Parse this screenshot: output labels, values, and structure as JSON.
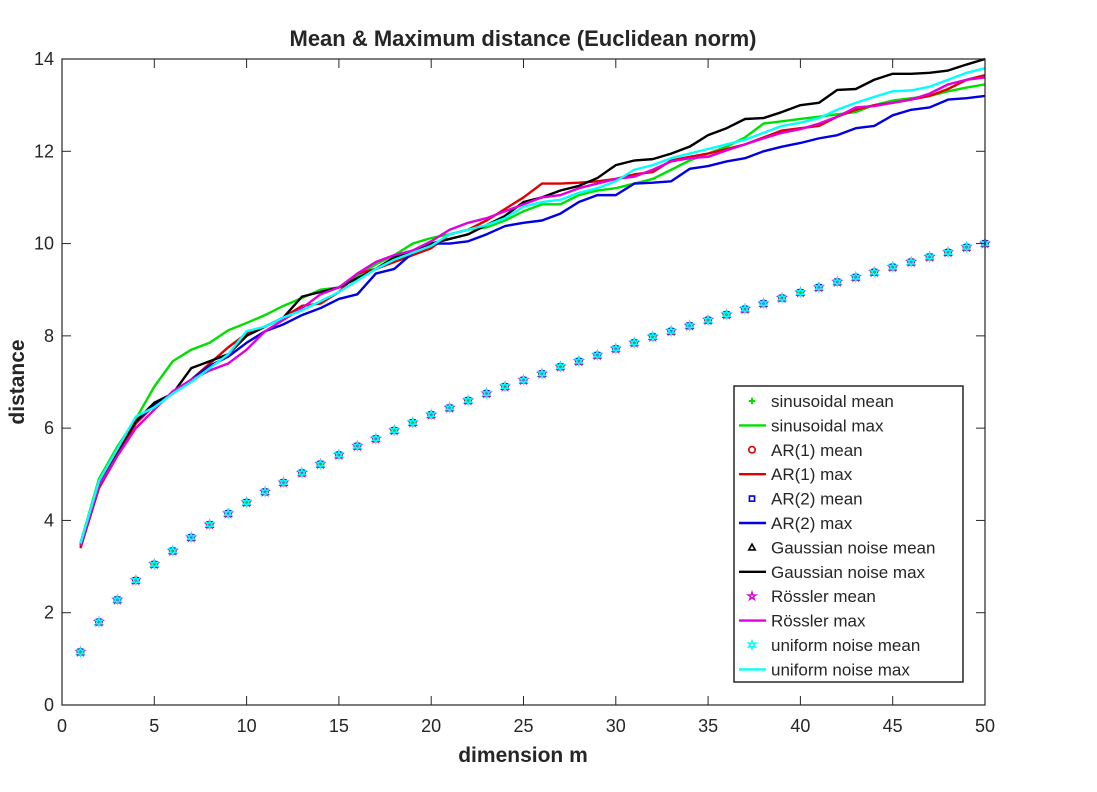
{
  "chart_data": {
    "type": "line",
    "title": "Mean & Maximum distance (Euclidean norm)",
    "xlabel": "dimension m",
    "ylabel": "distance",
    "xlim": [
      0,
      50
    ],
    "ylim": [
      0,
      14
    ],
    "xticks": [
      0,
      5,
      10,
      15,
      20,
      25,
      30,
      35,
      40,
      45,
      50
    ],
    "yticks": [
      0,
      2,
      4,
      6,
      8,
      10,
      12,
      14
    ],
    "grid": false,
    "legend_position": "bottom-right",
    "x": [
      1,
      2,
      3,
      4,
      5,
      6,
      7,
      8,
      9,
      10,
      11,
      12,
      13,
      14,
      15,
      16,
      17,
      18,
      19,
      20,
      21,
      22,
      23,
      24,
      25,
      26,
      27,
      28,
      29,
      30,
      31,
      32,
      33,
      34,
      35,
      36,
      37,
      38,
      39,
      40,
      41,
      42,
      43,
      44,
      45,
      46,
      47,
      48,
      49,
      50
    ],
    "series": [
      {
        "name": "sinusoidal mean",
        "kind": "mean",
        "color": "#00e000",
        "marker": "plus",
        "values": [
          1.15,
          1.8,
          2.28,
          2.7,
          3.05,
          3.34,
          3.63,
          3.91,
          4.15,
          4.39,
          4.62,
          4.82,
          5.03,
          5.22,
          5.42,
          5.61,
          5.77,
          5.95,
          6.12,
          6.29,
          6.44,
          6.6,
          6.75,
          6.9,
          7.04,
          7.18,
          7.33,
          7.45,
          7.58,
          7.72,
          7.85,
          7.98,
          8.1,
          8.22,
          8.34,
          8.46,
          8.58,
          8.7,
          8.82,
          8.94,
          9.05,
          9.17,
          9.27,
          9.38,
          9.49,
          9.6,
          9.71,
          9.81,
          9.92,
          10.0
        ]
      },
      {
        "name": "sinusoidal max",
        "kind": "max",
        "color": "#00e000",
        "values": [
          3.5,
          4.9,
          5.6,
          6.2,
          6.9,
          7.45,
          7.7,
          7.85,
          8.12,
          8.28,
          8.45,
          8.65,
          8.82,
          9.0,
          9.05,
          9.3,
          9.55,
          9.75,
          10.0,
          10.12,
          10.2,
          10.3,
          10.35,
          10.5,
          10.7,
          10.85,
          10.85,
          11.05,
          11.15,
          11.2,
          11.3,
          11.4,
          11.6,
          11.8,
          11.95,
          12.1,
          12.3,
          12.6,
          12.65,
          12.7,
          12.75,
          12.8,
          12.85,
          13.0,
          13.1,
          13.15,
          13.2,
          13.3,
          13.38,
          13.45
        ]
      },
      {
        "name": "AR(1) mean",
        "kind": "mean",
        "color": "#e00000",
        "marker": "circle",
        "values": [
          1.15,
          1.8,
          2.28,
          2.7,
          3.05,
          3.34,
          3.63,
          3.91,
          4.15,
          4.39,
          4.62,
          4.82,
          5.03,
          5.22,
          5.42,
          5.61,
          5.77,
          5.95,
          6.12,
          6.29,
          6.44,
          6.6,
          6.75,
          6.9,
          7.04,
          7.18,
          7.33,
          7.45,
          7.58,
          7.72,
          7.85,
          7.98,
          8.1,
          8.22,
          8.34,
          8.46,
          8.58,
          8.7,
          8.82,
          8.94,
          9.05,
          9.17,
          9.27,
          9.38,
          9.49,
          9.6,
          9.71,
          9.81,
          9.92,
          10.0
        ]
      },
      {
        "name": "AR(1) max",
        "kind": "max",
        "color": "#e00000",
        "values": [
          3.4,
          4.7,
          5.4,
          6.1,
          6.5,
          6.75,
          7.05,
          7.4,
          7.75,
          8.05,
          8.2,
          8.4,
          8.65,
          8.7,
          8.95,
          9.35,
          9.45,
          9.6,
          9.75,
          9.9,
          10.2,
          10.3,
          10.5,
          10.75,
          11.0,
          11.3,
          11.3,
          11.32,
          11.35,
          11.4,
          11.5,
          11.55,
          11.8,
          11.88,
          11.95,
          12.05,
          12.15,
          12.3,
          12.45,
          12.5,
          12.55,
          12.75,
          12.9,
          13.0,
          13.05,
          13.12,
          13.2,
          13.35,
          13.55,
          13.65
        ]
      },
      {
        "name": "AR(2) mean",
        "kind": "mean",
        "color": "#0000e0",
        "marker": "square",
        "values": [
          1.15,
          1.8,
          2.28,
          2.7,
          3.05,
          3.34,
          3.63,
          3.91,
          4.15,
          4.39,
          4.62,
          4.82,
          5.03,
          5.22,
          5.42,
          5.61,
          5.77,
          5.95,
          6.12,
          6.29,
          6.44,
          6.6,
          6.75,
          6.9,
          7.04,
          7.18,
          7.33,
          7.45,
          7.58,
          7.72,
          7.85,
          7.98,
          8.1,
          8.22,
          8.34,
          8.46,
          8.58,
          8.7,
          8.82,
          8.94,
          9.05,
          9.17,
          9.27,
          9.38,
          9.49,
          9.6,
          9.71,
          9.81,
          9.92,
          10.0
        ]
      },
      {
        "name": "AR(2) max",
        "kind": "max",
        "color": "#0000e0",
        "values": [
          3.45,
          4.75,
          5.5,
          6.15,
          6.5,
          6.75,
          7.05,
          7.35,
          7.55,
          7.85,
          8.1,
          8.25,
          8.45,
          8.6,
          8.8,
          8.9,
          9.35,
          9.45,
          9.8,
          10.0,
          10.0,
          10.05,
          10.2,
          10.38,
          10.45,
          10.5,
          10.65,
          10.9,
          11.05,
          11.05,
          11.3,
          11.32,
          11.35,
          11.62,
          11.68,
          11.78,
          11.85,
          12.0,
          12.1,
          12.18,
          12.28,
          12.35,
          12.5,
          12.55,
          12.78,
          12.9,
          12.95,
          13.12,
          13.15,
          13.2
        ]
      },
      {
        "name": "Gaussian noise mean",
        "kind": "mean",
        "color": "#000000",
        "marker": "triangle",
        "values": [
          1.15,
          1.8,
          2.28,
          2.7,
          3.05,
          3.34,
          3.63,
          3.91,
          4.15,
          4.39,
          4.62,
          4.82,
          5.03,
          5.22,
          5.42,
          5.61,
          5.77,
          5.95,
          6.12,
          6.29,
          6.44,
          6.6,
          6.75,
          6.9,
          7.04,
          7.18,
          7.33,
          7.45,
          7.58,
          7.72,
          7.85,
          7.98,
          8.1,
          8.22,
          8.34,
          8.46,
          8.58,
          8.7,
          8.82,
          8.94,
          9.05,
          9.17,
          9.27,
          9.38,
          9.49,
          9.6,
          9.71,
          9.81,
          9.92,
          10.0
        ]
      },
      {
        "name": "Gaussian noise max",
        "kind": "max",
        "color": "#000000",
        "values": [
          3.5,
          4.8,
          5.5,
          6.15,
          6.55,
          6.75,
          7.3,
          7.45,
          7.6,
          8.0,
          8.2,
          8.4,
          8.85,
          8.95,
          9.05,
          9.25,
          9.45,
          9.7,
          9.85,
          10.0,
          10.1,
          10.2,
          10.4,
          10.6,
          10.9,
          11.0,
          11.15,
          11.25,
          11.42,
          11.7,
          11.8,
          11.83,
          11.95,
          12.1,
          12.35,
          12.5,
          12.7,
          12.72,
          12.85,
          13.0,
          13.05,
          13.33,
          13.35,
          13.55,
          13.68,
          13.68,
          13.7,
          13.75,
          13.88,
          14.0
        ]
      },
      {
        "name": "Rössler mean",
        "kind": "mean",
        "color": "#e000e0",
        "marker": "pentagram",
        "values": [
          1.15,
          1.8,
          2.28,
          2.7,
          3.05,
          3.34,
          3.63,
          3.91,
          4.15,
          4.39,
          4.62,
          4.82,
          5.03,
          5.22,
          5.42,
          5.61,
          5.77,
          5.95,
          6.12,
          6.29,
          6.44,
          6.6,
          6.75,
          6.9,
          7.04,
          7.18,
          7.33,
          7.45,
          7.58,
          7.72,
          7.85,
          7.98,
          8.1,
          8.22,
          8.34,
          8.46,
          8.58,
          8.7,
          8.82,
          8.94,
          9.05,
          9.17,
          9.27,
          9.38,
          9.49,
          9.6,
          9.71,
          9.81,
          9.92,
          10.0
        ]
      },
      {
        "name": "Rössler max",
        "kind": "max",
        "color": "#e000e0",
        "values": [
          3.45,
          4.75,
          5.4,
          6.0,
          6.4,
          6.8,
          7.05,
          7.25,
          7.4,
          7.7,
          8.1,
          8.35,
          8.6,
          8.9,
          9.05,
          9.35,
          9.6,
          9.75,
          9.85,
          10.05,
          10.3,
          10.45,
          10.55,
          10.7,
          10.85,
          11.0,
          11.05,
          11.2,
          11.3,
          11.4,
          11.45,
          11.6,
          11.78,
          11.85,
          11.88,
          12.02,
          12.15,
          12.28,
          12.4,
          12.48,
          12.6,
          12.75,
          12.95,
          12.98,
          13.05,
          13.12,
          13.25,
          13.45,
          13.55,
          13.6
        ]
      },
      {
        "name": "uniform noise mean",
        "kind": "mean",
        "color": "#00ffff",
        "marker": "hexagram",
        "values": [
          1.15,
          1.8,
          2.28,
          2.7,
          3.05,
          3.34,
          3.63,
          3.91,
          4.15,
          4.39,
          4.62,
          4.82,
          5.03,
          5.22,
          5.42,
          5.61,
          5.77,
          5.95,
          6.12,
          6.29,
          6.44,
          6.6,
          6.75,
          6.9,
          7.04,
          7.18,
          7.33,
          7.45,
          7.58,
          7.72,
          7.85,
          7.98,
          8.1,
          8.22,
          8.34,
          8.46,
          8.58,
          8.7,
          8.82,
          8.94,
          9.05,
          9.17,
          9.27,
          9.38,
          9.49,
          9.6,
          9.71,
          9.81,
          9.92,
          10.0
        ]
      },
      {
        "name": "uniform noise max",
        "kind": "max",
        "color": "#00ffff",
        "values": [
          3.5,
          4.85,
          5.55,
          6.25,
          6.45,
          6.75,
          7.0,
          7.3,
          7.6,
          8.1,
          8.2,
          8.4,
          8.55,
          8.75,
          8.95,
          9.2,
          9.45,
          9.65,
          9.8,
          9.95,
          10.2,
          10.3,
          10.4,
          10.55,
          10.8,
          10.9,
          10.95,
          11.1,
          11.2,
          11.35,
          11.6,
          11.7,
          11.85,
          11.95,
          12.05,
          12.15,
          12.25,
          12.4,
          12.55,
          12.62,
          12.72,
          12.9,
          13.05,
          13.18,
          13.3,
          13.32,
          13.4,
          13.55,
          13.7,
          13.8
        ]
      }
    ]
  }
}
